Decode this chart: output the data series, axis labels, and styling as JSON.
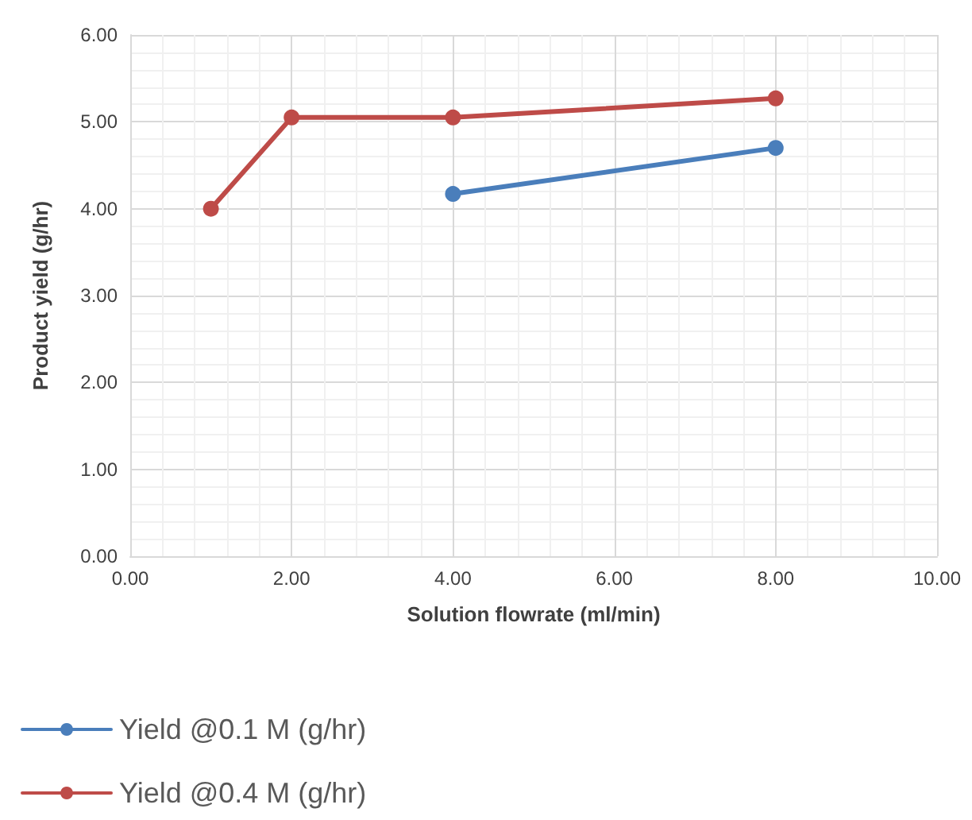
{
  "chart_data": {
    "type": "line",
    "xlabel": "Solution flowrate (ml/min)",
    "ylabel": "Product yield (g/hr)",
    "series": [
      {
        "name": "Yield @0.1 M (g/hr)",
        "color": "#4a7ebb",
        "x": [
          4,
          8
        ],
        "values": [
          4.17,
          4.7
        ]
      },
      {
        "name": "Yield @0.4 M (g/hr)",
        "color": "#be4b48",
        "x": [
          1,
          2,
          4,
          8
        ],
        "values": [
          4.0,
          5.05,
          5.05,
          5.27
        ]
      }
    ],
    "xlim": [
      0,
      10
    ],
    "xticks": [
      {
        "value": 0,
        "label": "0.00"
      },
      {
        "value": 2,
        "label": "2.00"
      },
      {
        "value": 4,
        "label": "4.00"
      },
      {
        "value": 6,
        "label": "6.00"
      },
      {
        "value": 8,
        "label": "8.00"
      },
      {
        "value": 10,
        "label": "10.00"
      }
    ],
    "ylim": [
      0,
      6
    ],
    "yticks": [
      {
        "value": 0,
        "label": "0.00"
      },
      {
        "value": 1,
        "label": "1.00"
      },
      {
        "value": 2,
        "label": "2.00"
      },
      {
        "value": 3,
        "label": "3.00"
      },
      {
        "value": 4,
        "label": "4.00"
      },
      {
        "value": 5,
        "label": "5.00"
      },
      {
        "value": 6,
        "label": "6.00"
      }
    ],
    "grid": true,
    "legend": "bottom left",
    "marker": "circle",
    "line_style": "solid"
  }
}
